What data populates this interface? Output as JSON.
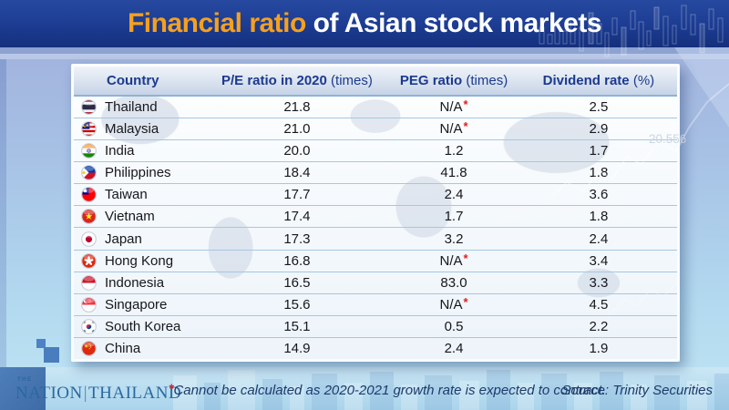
{
  "header": {
    "title_highlight": "Financial ratio",
    "title_rest": " of Asian stock markets"
  },
  "table": {
    "columns": [
      {
        "bold": "Country",
        "light": ""
      },
      {
        "bold": "P/E ratio in 2020",
        "light": " (times)"
      },
      {
        "bold": "PEG ratio",
        "light": " (times)"
      },
      {
        "bold": "Dividend rate",
        "light": " (%)"
      }
    ],
    "rows": [
      {
        "flag": "thailand",
        "country": "Thailand",
        "pe": "21.8",
        "peg": "N/A",
        "peg_asterisk": true,
        "dividend": "2.5"
      },
      {
        "flag": "malaysia",
        "country": "Malaysia",
        "pe": "21.0",
        "peg": "N/A",
        "peg_asterisk": true,
        "dividend": "2.9"
      },
      {
        "flag": "india",
        "country": "India",
        "pe": "20.0",
        "peg": "1.2",
        "peg_asterisk": false,
        "dividend": "1.7"
      },
      {
        "flag": "philippines",
        "country": "Philippines",
        "pe": "18.4",
        "peg": "41.8",
        "peg_asterisk": false,
        "dividend": "1.8"
      },
      {
        "flag": "taiwan",
        "country": "Taiwan",
        "pe": "17.7",
        "peg": "2.4",
        "peg_asterisk": false,
        "dividend": "3.6"
      },
      {
        "flag": "vietnam",
        "country": "Vietnam",
        "pe": "17.4",
        "peg": "1.7",
        "peg_asterisk": false,
        "dividend": "1.8"
      },
      {
        "flag": "japan",
        "country": "Japan",
        "pe": "17.3",
        "peg": "3.2",
        "peg_asterisk": false,
        "dividend": "2.4"
      },
      {
        "flag": "hongkong",
        "country": "Hong Kong",
        "pe": "16.8",
        "peg": "N/A",
        "peg_asterisk": true,
        "dividend": "3.4"
      },
      {
        "flag": "indonesia",
        "country": "Indonesia",
        "pe": "16.5",
        "peg": "83.0",
        "peg_asterisk": false,
        "dividend": "3.3"
      },
      {
        "flag": "singapore",
        "country": "Singapore",
        "pe": "15.6",
        "peg": "N/A",
        "peg_asterisk": true,
        "dividend": "4.5"
      },
      {
        "flag": "southkorea",
        "country": "South Korea",
        "pe": "15.1",
        "peg": "0.5",
        "peg_asterisk": false,
        "dividend": "2.2"
      },
      {
        "flag": "china",
        "country": "China",
        "pe": "14.9",
        "peg": "2.4",
        "peg_asterisk": false,
        "dividend": "1.9"
      }
    ]
  },
  "footer": {
    "logo_the": "THE",
    "logo_nation": "NATION",
    "logo_divider": "|",
    "logo_thailand": "THAILAND",
    "footnote_asterisk": "*",
    "footnote_text": "Cannot be calculated as 2020-2021 growth rate is expected to contract.",
    "source": "Source: Trinity Securities"
  },
  "decor": {
    "watermark_number": "20.556"
  },
  "colors": {
    "header_bg": "#1c3c92",
    "title_highlight": "#f6a01e",
    "header_text": "#1b3a8f",
    "asterisk_red": "#e31f1f",
    "logo_blue": "#2a689f"
  },
  "chart_data": {
    "type": "table",
    "title": "Financial ratio of Asian stock markets",
    "columns": [
      "Country",
      "P/E ratio in 2020 (times)",
      "PEG ratio (times)",
      "Dividend rate (%)"
    ],
    "rows": [
      [
        "Thailand",
        "21.8",
        "N/A*",
        "2.5"
      ],
      [
        "Malaysia",
        "21.0",
        "N/A*",
        "2.9"
      ],
      [
        "India",
        "20.0",
        "1.2",
        "1.7"
      ],
      [
        "Philippines",
        "18.4",
        "41.8",
        "1.8"
      ],
      [
        "Taiwan",
        "17.7",
        "2.4",
        "3.6"
      ],
      [
        "Vietnam",
        "17.4",
        "1.7",
        "1.8"
      ],
      [
        "Japan",
        "17.3",
        "3.2",
        "2.4"
      ],
      [
        "Hong Kong",
        "16.8",
        "N/A*",
        "3.4"
      ],
      [
        "Indonesia",
        "16.5",
        "83.0",
        "3.3"
      ],
      [
        "Singapore",
        "15.6",
        "N/A*",
        "4.5"
      ],
      [
        "South Korea",
        "15.1",
        "0.5",
        "2.2"
      ],
      [
        "China",
        "14.9",
        "2.4",
        "1.9"
      ]
    ],
    "footnote": "*Cannot be calculated as 2020-2021 growth rate is expected to contract.",
    "source": "Source: Trinity Securities"
  }
}
